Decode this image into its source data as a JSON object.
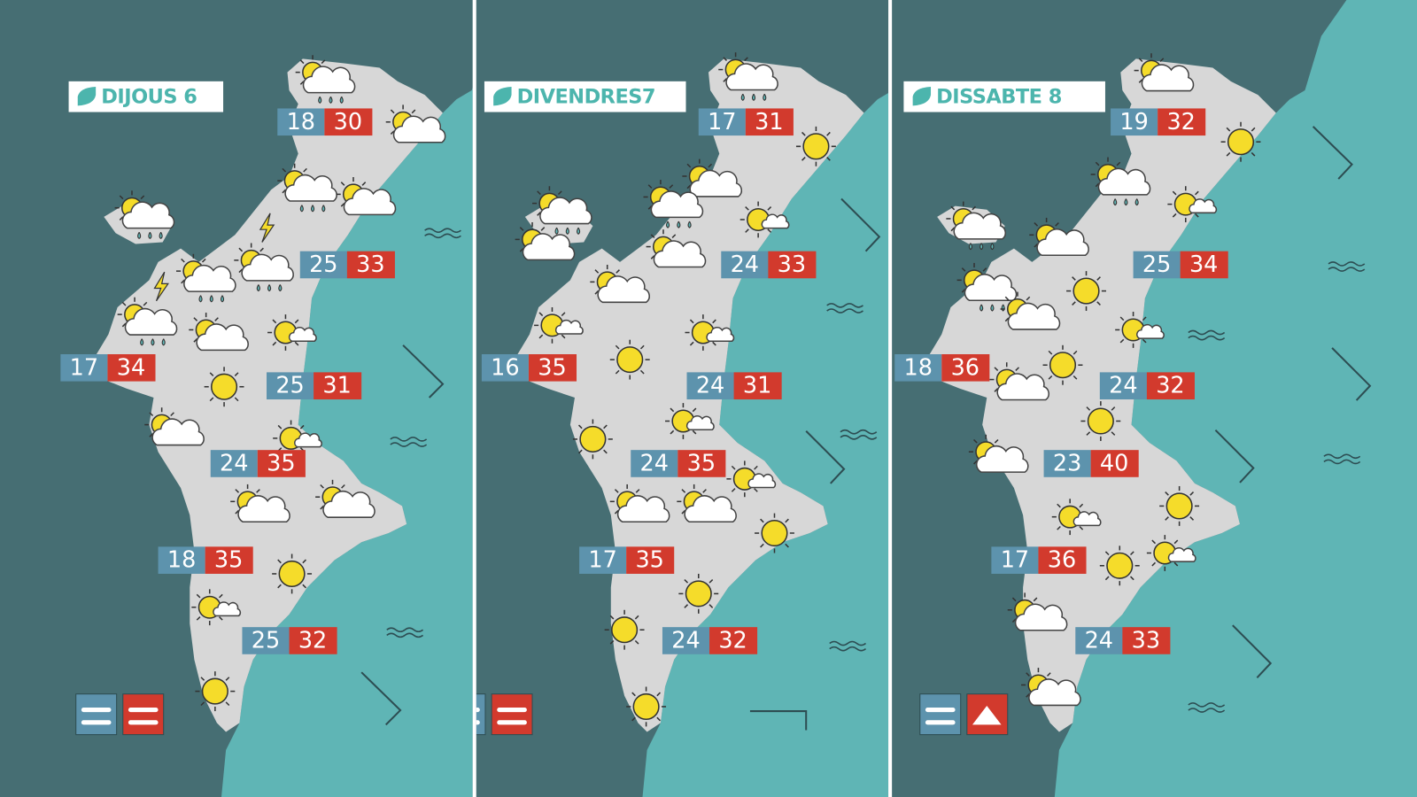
{
  "panels": [
    {
      "title": "DIJOUS 6",
      "temperatures": [
        [
          18,
          30
        ],
        [
          25,
          33
        ],
        [
          17,
          34
        ],
        [
          25,
          31
        ],
        [
          24,
          35
        ],
        [
          18,
          35
        ],
        [
          25,
          32
        ]
      ]
    },
    {
      "title": "DIVENDRES7",
      "temperatures": [
        [
          17,
          31
        ],
        [
          24,
          33
        ],
        [
          16,
          35
        ],
        [
          24,
          31
        ],
        [
          24,
          35
        ],
        [
          17,
          35
        ],
        [
          24,
          32
        ]
      ]
    },
    {
      "title": "DISSABTE 8",
      "temperatures": [
        [
          19,
          32
        ],
        [
          25,
          34
        ],
        [
          18,
          36
        ],
        [
          24,
          32
        ],
        [
          23,
          40
        ],
        [
          17,
          36
        ],
        [
          24,
          33
        ]
      ]
    }
  ]
}
